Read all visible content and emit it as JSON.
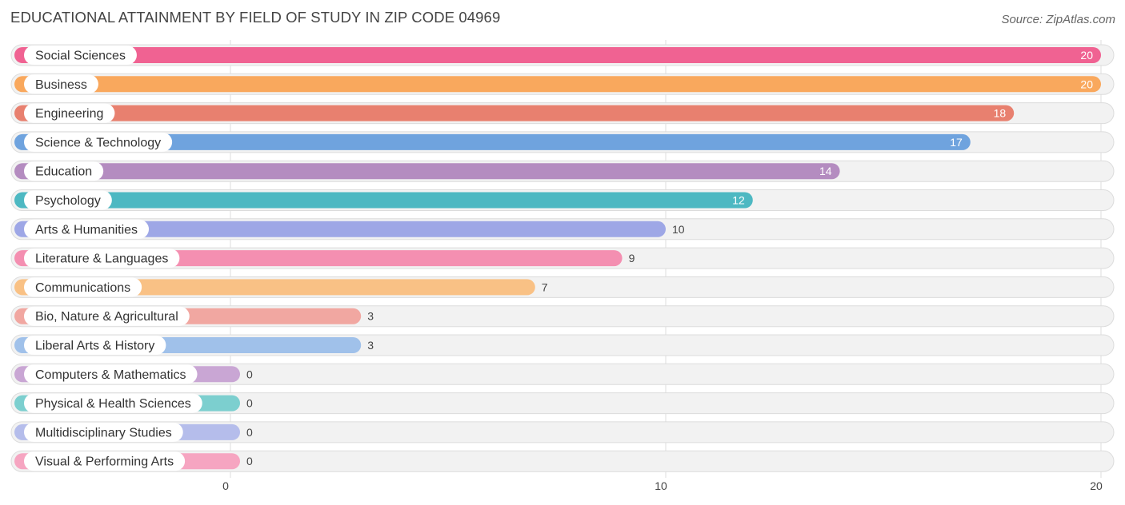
{
  "header": {
    "title": "EDUCATIONAL ATTAINMENT BY FIELD OF STUDY IN ZIP CODE 04969",
    "source": "Source: ZipAtlas.com"
  },
  "chart_data": {
    "type": "bar",
    "orientation": "horizontal",
    "title": "EDUCATIONAL ATTAINMENT BY FIELD OF STUDY IN ZIP CODE 04969",
    "xlabel": "",
    "ylabel": "",
    "xlim": [
      0,
      20
    ],
    "ticks": [
      0,
      10,
      20
    ],
    "grid": true,
    "categories": [
      "Social Sciences",
      "Business",
      "Engineering",
      "Science & Technology",
      "Education",
      "Psychology",
      "Arts & Humanities",
      "Literature & Languages",
      "Communications",
      "Bio, Nature & Agricultural",
      "Liberal Arts & History",
      "Computers & Mathematics",
      "Physical & Health Sciences",
      "Multidisciplinary Studies",
      "Visual & Performing Arts"
    ],
    "values": [
      20,
      20,
      18,
      17,
      14,
      12,
      10,
      9,
      7,
      3,
      3,
      0,
      0,
      0,
      0
    ],
    "colors": [
      "#f06292",
      "#f9a85d",
      "#e8806f",
      "#6fa3de",
      "#b48cc0",
      "#4db8c2",
      "#9ea7e6",
      "#f48fb1",
      "#f9c185",
      "#f1a7a1",
      "#a0c1ea",
      "#c9a6d4",
      "#7ccfcf",
      "#b5bdeb",
      "#f6a5c1"
    ]
  }
}
